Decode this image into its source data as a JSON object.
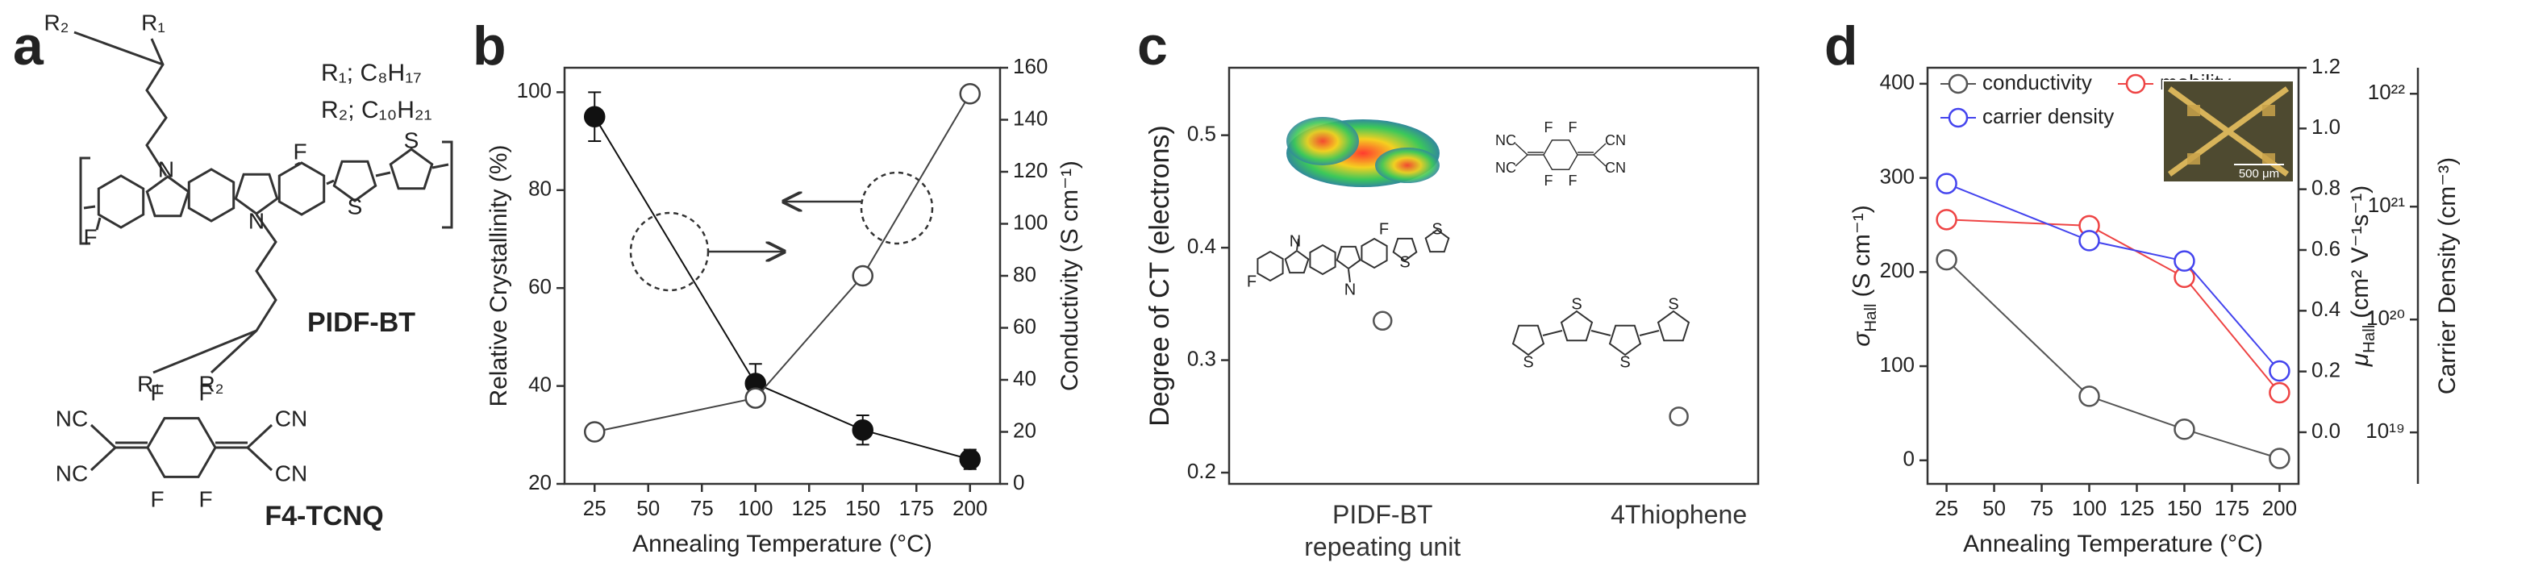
{
  "panel_labels": [
    "a",
    "b",
    "c",
    "d"
  ],
  "panel_a": {
    "substituents": [
      "R₁; C₈H₁₇",
      "R₂; C₁₀H₂₁"
    ],
    "polymer_name": "PIDF-BT",
    "polymer_atoms": [
      "R₂",
      "R₁",
      "N",
      "F",
      "S",
      "S",
      "F",
      "N",
      "R₁",
      "R₂"
    ],
    "dopant_name": "F4-TCNQ",
    "dopant_atoms": [
      "F",
      "F",
      "NC",
      "CN",
      "NC",
      "CN",
      "F",
      "F"
    ]
  },
  "panel_c": {
    "dopant_atoms": [
      "F",
      "F",
      "NC",
      "CN",
      "NC",
      "CN",
      "F",
      "F"
    ],
    "polymer_atoms": [
      "N",
      "F",
      "S",
      "S",
      "F",
      "N"
    ],
    "oligomer_atoms": [
      "S",
      "S",
      "S",
      "S"
    ]
  },
  "panel_d": {
    "scale_bar": "500 μm"
  },
  "chart_data": [
    {
      "type": "line",
      "xlabel": "Annealing Temperature (°C)",
      "ylabel": "Relative Crystallinity (%)",
      "y2label": "Conductivity (S cm⁻¹)",
      "x": [
        25,
        100,
        150,
        200
      ],
      "series": [
        {
          "color": "#111111",
          "marker": "filled",
          "values": [
            95,
            40.5,
            31,
            25
          ],
          "errors": [
            5,
            4,
            3,
            2
          ]
        },
        {
          "color": "#444444",
          "marker": "open",
          "axis": "y2",
          "values": [
            20,
            33,
            80,
            150
          ]
        }
      ],
      "xlim": [
        11,
        214
      ],
      "xticks": [
        25,
        50,
        75,
        100,
        125,
        150,
        175,
        200
      ],
      "ylim": [
        20,
        105
      ],
      "yticks": [
        20,
        40,
        60,
        80,
        100
      ],
      "y2lim": [
        0,
        160
      ],
      "y2ticks": [
        0,
        20,
        40,
        60,
        80,
        100,
        120,
        140,
        160
      ]
    },
    {
      "type": "scatter",
      "ylabel": "Degree of CT (electrons)",
      "categories": [
        "PIDF-BT repeating unit",
        "4Thiophene"
      ],
      "series": [
        {
          "color": "#555555",
          "marker": "open",
          "values": [
            0.335,
            0.25
          ]
        }
      ],
      "ylim": [
        0.19,
        0.56
      ],
      "yticks": [
        0.2,
        0.3,
        0.4,
        0.5
      ]
    },
    {
      "type": "line",
      "xlabel": "Annealing Temperature (°C)",
      "ylabel": {
        "symbol": "σ",
        "subscript": "Hall",
        "unit": "(S cm⁻¹)"
      },
      "y2label": {
        "symbol": "μ",
        "subscript": "Hall",
        "unit": "(cm² V⁻¹s⁻¹)"
      },
      "y3label": "Carrier Density (cm⁻³)",
      "x": [
        25,
        100,
        150,
        200
      ],
      "series": [
        {
          "name": "conductivity",
          "color": "#555555",
          "marker": "open",
          "values": [
            213,
            68,
            33,
            2
          ]
        },
        {
          "name": "mobility",
          "color": "#ee4444",
          "marker": "open",
          "axis": "y2",
          "values": [
            0.7,
            0.68,
            0.51,
            0.13
          ]
        },
        {
          "name": "carrier density",
          "color": "#4444ee",
          "marker": "open",
          "axis": "y3",
          "values": [
            1.6e+21,
            5e+20,
            3.3e+20,
            3.5e+19
          ]
        }
      ],
      "legend": "upper left",
      "xlim": [
        15,
        210
      ],
      "xticks": [
        25,
        50,
        75,
        100,
        125,
        150,
        175,
        200
      ],
      "ylim": [
        -25,
        417
      ],
      "yticks": [
        0,
        100,
        200,
        300,
        400
      ],
      "y2lim": [
        -0.17,
        1.2
      ],
      "y2ticks": [
        {
          "value": 0,
          "label": "0.0"
        },
        0.2,
        0.4,
        0.6,
        0.8,
        {
          "value": 1,
          "label": "1.0"
        },
        1.2
      ],
      "y3scale": "log",
      "y3lim": [
        3.5e+18,
        1.7e+22
      ],
      "y3ticks": [
        {
          "value": 1e+19,
          "label": "10¹⁹"
        },
        {
          "value": 1e+20,
          "label": "10²⁰"
        },
        {
          "value": 1e+21,
          "label": "10²¹"
        },
        {
          "value": 1e+22,
          "label": "10²²"
        }
      ]
    }
  ]
}
